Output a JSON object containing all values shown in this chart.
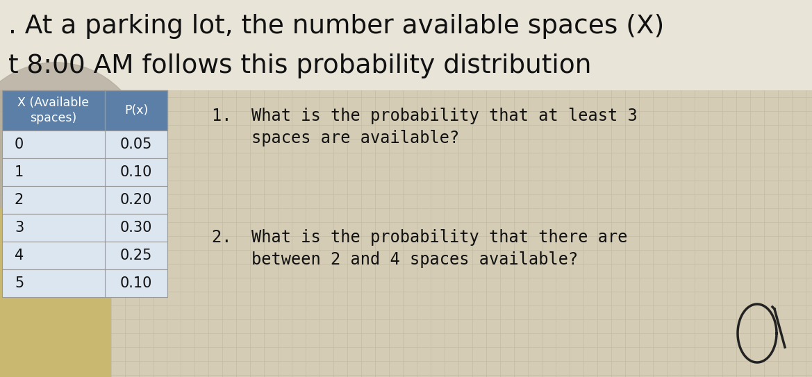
{
  "title_line1": ". At a parking lot, the number available spaces (X)",
  "title_line2": "t 8:00 AM follows this probability distribution",
  "title_fontsize": 27,
  "title_color": "#111111",
  "bg_color": "#d4ccb4",
  "grid_color": "#c4bca4",
  "table_header_bg": "#5b7fa6",
  "table_header_text": "#ffffff",
  "table_row_bg": "#dce6f0",
  "table_border_color": "#999999",
  "table_col1_header": "X (Available\nspaces)",
  "table_col2_header": "P(x)",
  "table_x_values": [
    "0",
    "1",
    "2",
    "3",
    "4",
    "5"
  ],
  "table_p_values": [
    "0.05",
    "0.10",
    "0.20",
    "0.30",
    "0.25",
    "0.10"
  ],
  "q1_line1": "1.  What is the probability that at least 3",
  "q1_line2": "    spaces are available?",
  "q2_line1": "2.  What is the probability that there are",
  "q2_line2": "    between 2 and 4 spaces available?",
  "question_fontsize": 17,
  "question_color": "#111111",
  "title_bg_color": "#e8e4d8",
  "blob_color": "#c8a850",
  "figsize": [
    11.69,
    5.43
  ],
  "dpi": 100
}
